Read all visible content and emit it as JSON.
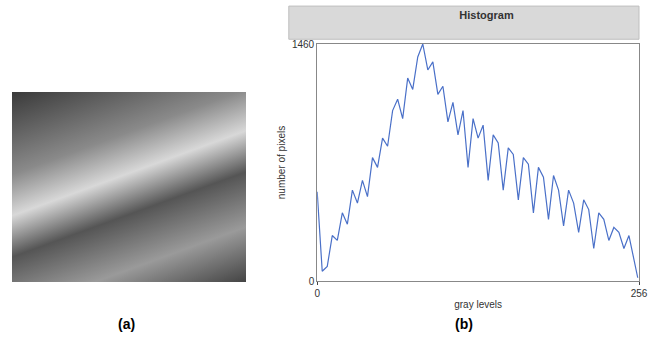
{
  "panel_labels": [
    "(a)",
    "(b)"
  ],
  "chart_data": {
    "type": "line",
    "title": "Histogram",
    "x_label": "gray levels",
    "y_label": "number of pixels",
    "x": [
      0,
      4,
      8,
      12,
      16,
      20,
      24,
      28,
      32,
      36,
      40,
      44,
      48,
      52,
      56,
      60,
      64,
      68,
      72,
      76,
      80,
      84,
      88,
      92,
      96,
      100,
      104,
      108,
      112,
      116,
      120,
      124,
      128,
      132,
      136,
      140,
      144,
      148,
      152,
      156,
      160,
      164,
      168,
      172,
      176,
      180,
      184,
      188,
      192,
      196,
      200,
      204,
      208,
      212,
      216,
      220,
      224,
      228,
      232,
      236,
      240,
      244,
      248,
      252,
      255
    ],
    "values": [
      550,
      60,
      90,
      280,
      250,
      420,
      350,
      560,
      480,
      620,
      520,
      760,
      700,
      880,
      830,
      1050,
      1120,
      1000,
      1250,
      1180,
      1380,
      1460,
      1300,
      1350,
      1150,
      1200,
      980,
      1100,
      900,
      1050,
      700,
      1000,
      880,
      960,
      620,
      900,
      850,
      560,
      820,
      780,
      500,
      760,
      720,
      420,
      700,
      640,
      380,
      650,
      560,
      340,
      560,
      480,
      300,
      500,
      440,
      200,
      420,
      380,
      250,
      330,
      300,
      200,
      280,
      120,
      20
    ],
    "color": "#4a70c8",
    "line_style": "solid",
    "xlim": [
      0,
      256
    ],
    "ylim": [
      0,
      1460
    ],
    "xticks": [
      0,
      256
    ],
    "yticks": [
      0,
      1460
    ],
    "grid": false
  }
}
